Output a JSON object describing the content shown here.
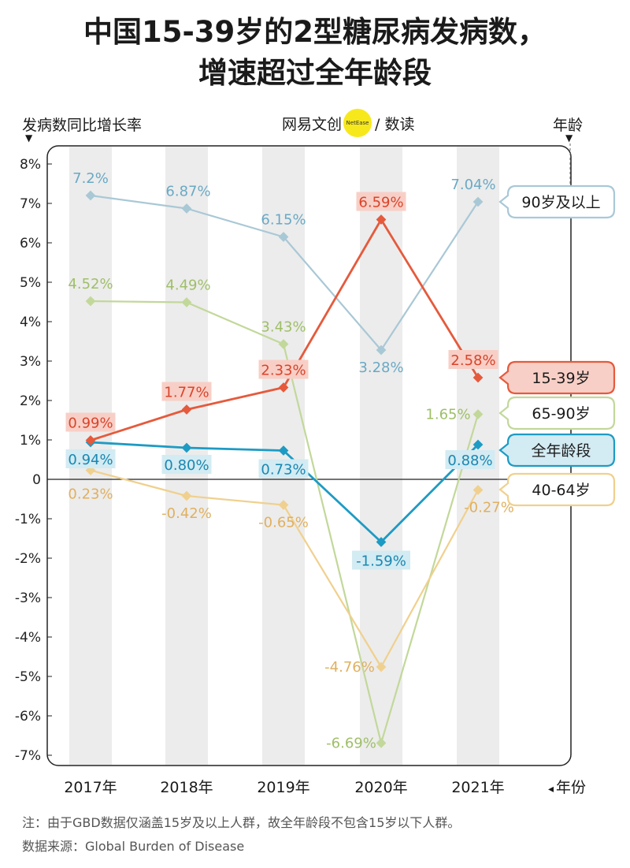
{
  "title_line1": "中国15-39岁的2型糖尿病发病数，",
  "title_line2": "增速超过全年龄段",
  "y_axis_label": "发病数同比增长率",
  "age_label": "年龄",
  "x_axis_label": "年份",
  "logo": {
    "text_left": "网易文创",
    "circle_text": "NetEase",
    "text_right": "/ 数读"
  },
  "note": "注：由于GBD数据仅涵盖15岁及以上人群，故全年龄段不包含15岁以下人群。",
  "source": "数据来源：Global Burden of Disease",
  "chart_data": {
    "type": "line",
    "title": "中国15-39岁的2型糖尿病发病数，增速超过全年龄段",
    "xlabel": "年份",
    "ylabel": "发病数同比增长率",
    "categories": [
      "2017年",
      "2018年",
      "2019年",
      "2020年",
      "2021年"
    ],
    "y_ticks": [
      "8%",
      "7%",
      "6%",
      "5%",
      "4%",
      "3%",
      "2%",
      "1%",
      "0",
      "-1%",
      "-2%",
      "-3%",
      "-4%",
      "-5%",
      "-6%",
      "-7%"
    ],
    "ylim": [
      -7,
      8
    ],
    "legend_position": "right",
    "series": [
      {
        "name": "90岁及以上",
        "color": "#a9c8d6",
        "label_bg": "",
        "label_color": "#6aa9c4",
        "values": [
          7.2,
          6.87,
          6.15,
          3.28,
          7.04
        ],
        "labels": [
          "7.2%",
          "6.87%",
          "6.15%",
          "3.28%",
          "7.04%"
        ]
      },
      {
        "name": "65-90岁",
        "color": "#c2d89a",
        "label_bg": "",
        "label_color": "#9fbf68",
        "values": [
          4.52,
          4.49,
          3.43,
          -6.69,
          1.65
        ],
        "labels": [
          "4.52%",
          "4.49%",
          "3.43%",
          "-6.69%",
          "1.65%"
        ]
      },
      {
        "name": "15-39岁",
        "color": "#e55a3c",
        "label_bg": "#f8cfc6",
        "label_color": "#d9442a",
        "values": [
          0.99,
          1.77,
          2.33,
          6.59,
          2.58
        ],
        "labels": [
          "0.99%",
          "1.77%",
          "2.33%",
          "6.59%",
          "2.58%"
        ]
      },
      {
        "name": "全年龄段",
        "color": "#1d9bc4",
        "label_bg": "#d3ebf3",
        "label_color": "#1a87b0",
        "values": [
          0.94,
          0.8,
          0.73,
          -1.59,
          0.88
        ],
        "labels": [
          "0.94%",
          "0.80%",
          "0.73%",
          "-1.59%",
          "0.88%"
        ]
      },
      {
        "name": "40-64岁",
        "color": "#f0d08e",
        "label_bg": "",
        "label_color": "#e0b060",
        "values": [
          0.23,
          -0.42,
          -0.65,
          -4.76,
          -0.27
        ],
        "labels": [
          "0.23%",
          "-0.42%",
          "-0.65%",
          "-4.76%",
          "-0.27%"
        ]
      }
    ]
  }
}
